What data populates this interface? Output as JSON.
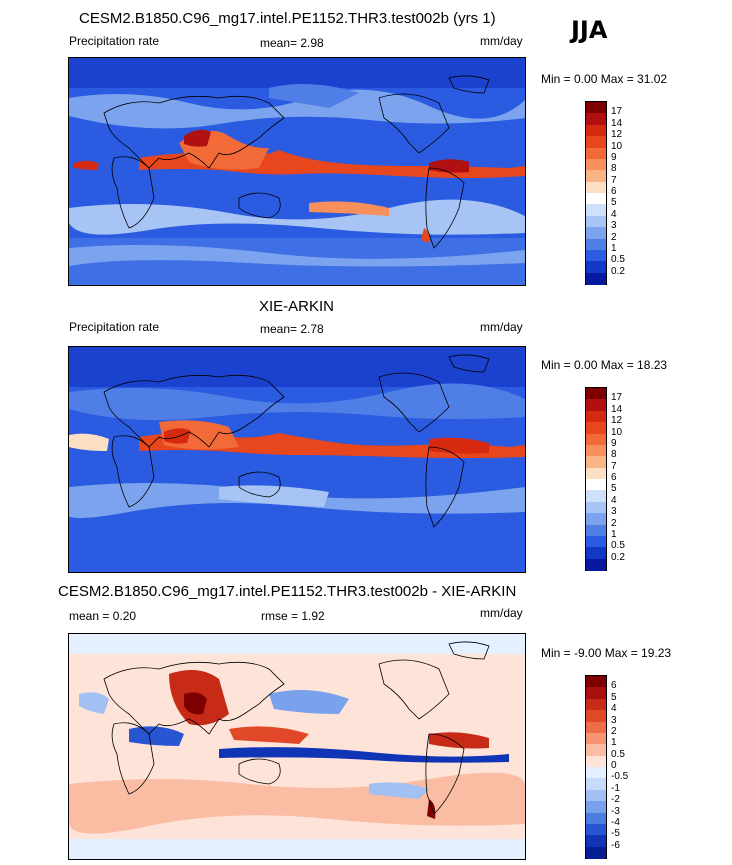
{
  "season": "JJA",
  "panels": [
    {
      "title": "CESM2.B1850.C96_mg17.intel.PE1152.THR3.test002b (yrs 1)",
      "variable": "Precipitation rate",
      "mean_text": "mean=   2.98",
      "rmse_text": "",
      "units": "mm/day",
      "minmax_text": "Min =    0.00 Max =  31.02",
      "colorbar": {
        "labels": [
          "17",
          "14",
          "12",
          "10",
          "9",
          "8",
          "7",
          "6",
          "5",
          "4",
          "3",
          "2",
          "1",
          "0.5",
          "0.2"
        ],
        "colors": [
          "#7f0000",
          "#b01010",
          "#d62a10",
          "#e8461c",
          "#f26a38",
          "#f7905a",
          "#fbb486",
          "#fde0c4",
          "#ffffff",
          "#cfe0fb",
          "#a7c4f5",
          "#7ca4ee",
          "#4f7fe6",
          "#2a5be0",
          "#1238c8",
          "#0618a0"
        ]
      }
    },
    {
      "title": "XIE-ARKIN",
      "variable": "Precipitation rate",
      "mean_text": "mean=   2.78",
      "rmse_text": "",
      "units": "mm/day",
      "minmax_text": "Min =    0.00 Max =  18.23",
      "colorbar": {
        "labels": [
          "17",
          "14",
          "12",
          "10",
          "9",
          "8",
          "7",
          "6",
          "5",
          "4",
          "3",
          "2",
          "1",
          "0.5",
          "0.2"
        ],
        "colors": [
          "#7f0000",
          "#b01010",
          "#d62a10",
          "#e8461c",
          "#f26a38",
          "#f7905a",
          "#fbb486",
          "#fde0c4",
          "#ffffff",
          "#cfe0fb",
          "#a7c4f5",
          "#7ca4ee",
          "#4f7fe6",
          "#2a5be0",
          "#1238c8",
          "#0618a0"
        ]
      }
    },
    {
      "title": "CESM2.B1850.C96_mg17.intel.PE1152.THR3.test002b - XIE-ARKIN",
      "variable": "",
      "mean_text": "mean =   0.20",
      "rmse_text": "rmse =   1.92",
      "units": "mm/day",
      "minmax_text": "Min =  -9.00 Max =  19.23",
      "colorbar": {
        "labels": [
          "6",
          "5",
          "4",
          "3",
          "2",
          "1",
          "0.5",
          "0",
          "-0.5",
          "-1",
          "-2",
          "-3",
          "-4",
          "-5",
          "-6"
        ],
        "colors": [
          "#7f0000",
          "#a81010",
          "#c82a18",
          "#e04828",
          "#ef6c48",
          "#f79474",
          "#fbbca4",
          "#fde3d8",
          "#e4efff",
          "#c6dafb",
          "#a2c0f4",
          "#7aa2ec",
          "#4c7ee2",
          "#2856d2",
          "#1034b6",
          "#061e94"
        ]
      }
    }
  ],
  "chart_data": [
    {
      "type": "heatmap",
      "title": "CESM2.B1850.C96_mg17.intel.PE1152.THR3.test002b (yrs 1)",
      "variable": "Precipitation rate",
      "units": "mm/day",
      "mean": 2.98,
      "min": 0.0,
      "max": 31.02,
      "contour_levels": [
        0.2,
        0.5,
        1,
        2,
        3,
        4,
        5,
        6,
        7,
        8,
        9,
        10,
        12,
        14,
        17
      ]
    },
    {
      "type": "heatmap",
      "title": "XIE-ARKIN",
      "variable": "Precipitation rate",
      "units": "mm/day",
      "mean": 2.78,
      "min": 0.0,
      "max": 18.23,
      "contour_levels": [
        0.2,
        0.5,
        1,
        2,
        3,
        4,
        5,
        6,
        7,
        8,
        9,
        10,
        12,
        14,
        17
      ]
    },
    {
      "type": "heatmap",
      "title": "CESM2.B1850.C96_mg17.intel.PE1152.THR3.test002b - XIE-ARKIN",
      "units": "mm/day",
      "mean": 0.2,
      "rmse": 1.92,
      "min": -9.0,
      "max": 19.23,
      "contour_levels": [
        -6,
        -5,
        -4,
        -3,
        -2,
        -1,
        -0.5,
        0,
        0.5,
        1,
        2,
        3,
        4,
        5,
        6
      ]
    }
  ]
}
